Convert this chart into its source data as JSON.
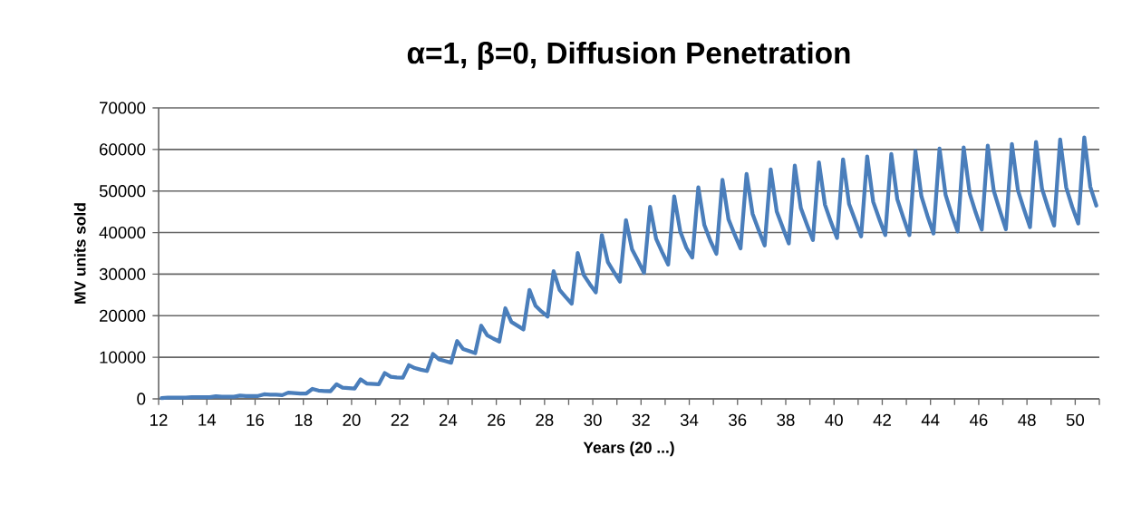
{
  "chart_data": {
    "type": "line",
    "title": "α=1, β=0, Diffusion Penetration",
    "xlabel": "Years (20 ...)",
    "ylabel": "MV units sold",
    "xlim": [
      12,
      51
    ],
    "ylim": [
      0,
      70000
    ],
    "xticks": [
      {
        "value": 12,
        "label": "12"
      },
      {
        "value": 13,
        "label": null
      },
      {
        "value": 14,
        "label": "14"
      },
      {
        "value": 15,
        "label": null
      },
      {
        "value": 16,
        "label": "16"
      },
      {
        "value": 17,
        "label": null
      },
      {
        "value": 18,
        "label": "18"
      },
      {
        "value": 19,
        "label": null
      },
      {
        "value": 20,
        "label": "20"
      },
      {
        "value": 21,
        "label": null
      },
      {
        "value": 22,
        "label": "22"
      },
      {
        "value": 23,
        "label": null
      },
      {
        "value": 24,
        "label": "24"
      },
      {
        "value": 25,
        "label": null
      },
      {
        "value": 26,
        "label": "26"
      },
      {
        "value": 27,
        "label": null
      },
      {
        "value": 28,
        "label": "28"
      },
      {
        "value": 29,
        "label": null
      },
      {
        "value": 30,
        "label": "30"
      },
      {
        "value": 31,
        "label": null
      },
      {
        "value": 32,
        "label": "32"
      },
      {
        "value": 33,
        "label": null
      },
      {
        "value": 34,
        "label": "34"
      },
      {
        "value": 35,
        "label": null
      },
      {
        "value": 36,
        "label": "36"
      },
      {
        "value": 37,
        "label": null
      },
      {
        "value": 38,
        "label": "38"
      },
      {
        "value": 39,
        "label": null
      },
      {
        "value": 40,
        "label": "40"
      },
      {
        "value": 41,
        "label": null
      },
      {
        "value": 42,
        "label": "42"
      },
      {
        "value": 43,
        "label": null
      },
      {
        "value": 44,
        "label": "44"
      },
      {
        "value": 45,
        "label": null
      },
      {
        "value": 46,
        "label": "46"
      },
      {
        "value": 47,
        "label": null
      },
      {
        "value": 48,
        "label": "48"
      },
      {
        "value": 49,
        "label": null
      },
      {
        "value": 50,
        "label": "50"
      },
      {
        "value": 51,
        "label": null
      }
    ],
    "yticks": [
      0,
      10000,
      20000,
      30000,
      40000,
      50000,
      60000,
      70000
    ],
    "grid": "y",
    "marker": "none",
    "line_style": "solid",
    "x": [
      12.125,
      12.375,
      12.625,
      12.875,
      13.125,
      13.375,
      13.625,
      13.875,
      14.125,
      14.375,
      14.625,
      14.875,
      15.125,
      15.375,
      15.625,
      15.875,
      16.125,
      16.375,
      16.625,
      16.875,
      17.125,
      17.375,
      17.625,
      17.875,
      18.125,
      18.375,
      18.625,
      18.875,
      19.125,
      19.375,
      19.625,
      19.875,
      20.125,
      20.375,
      20.625,
      20.875,
      21.125,
      21.375,
      21.625,
      21.875,
      22.125,
      22.375,
      22.625,
      22.875,
      23.125,
      23.375,
      23.625,
      23.875,
      24.125,
      24.375,
      24.625,
      24.875,
      25.125,
      25.375,
      25.625,
      25.875,
      26.125,
      26.375,
      26.625,
      26.875,
      27.125,
      27.375,
      27.625,
      27.875,
      28.125,
      28.375,
      28.625,
      28.875,
      29.125,
      29.375,
      29.625,
      29.875,
      30.125,
      30.375,
      30.625,
      30.875,
      31.125,
      31.375,
      31.625,
      31.875,
      32.125,
      32.375,
      32.625,
      32.875,
      33.125,
      33.375,
      33.625,
      33.875,
      34.125,
      34.375,
      34.625,
      34.875,
      35.125,
      35.375,
      35.625,
      35.875,
      36.125,
      36.375,
      36.625,
      36.875,
      37.125,
      37.375,
      37.625,
      37.875,
      38.125,
      38.375,
      38.625,
      38.875,
      39.125,
      39.375,
      39.625,
      39.875,
      40.125,
      40.375,
      40.625,
      40.875,
      41.125,
      41.375,
      41.625,
      41.875,
      42.125,
      42.375,
      42.625,
      42.875,
      43.125,
      43.375,
      43.625,
      43.875,
      44.125,
      44.375,
      44.625,
      44.875,
      45.125,
      45.375,
      45.625,
      45.875,
      46.125,
      46.375,
      46.625,
      46.875,
      47.125,
      47.375,
      47.625,
      47.875,
      48.125,
      48.375,
      48.625,
      48.875,
      49.125,
      49.375,
      49.625,
      49.875,
      50.125,
      50.375,
      50.625,
      50.875
    ],
    "series": [
      {
        "color": "#4a7ebb",
        "values": [
          200,
          300,
          300,
          300,
          300,
          400,
          400,
          400,
          400,
          600,
          500,
          500,
          500,
          800,
          700,
          700,
          700,
          1100,
          1000,
          1000,
          900,
          1500,
          1400,
          1300,
          1300,
          2400,
          2000,
          1900,
          1850,
          3500,
          2700,
          2600,
          2500,
          4700,
          3700,
          3600,
          3500,
          6200,
          5300,
          5150,
          5100,
          8100,
          7400,
          7000,
          6700,
          10800,
          9500,
          9100,
          8700,
          13900,
          12000,
          11500,
          11000,
          17600,
          15300,
          14500,
          13800,
          21800,
          18500,
          17600,
          16700,
          26200,
          22400,
          21000,
          19800,
          30700,
          26200,
          24500,
          22900,
          35100,
          29800,
          27600,
          25600,
          39400,
          32900,
          30500,
          28200,
          43000,
          36000,
          33200,
          30300,
          46200,
          38500,
          35300,
          32300,
          48700,
          40300,
          36400,
          34000,
          50900,
          41800,
          38000,
          34900,
          52700,
          43200,
          39600,
          36200,
          54100,
          44500,
          40600,
          36900,
          55200,
          45100,
          41200,
          37400,
          56100,
          45900,
          42000,
          38200,
          56900,
          46700,
          42500,
          38700,
          57600,
          46900,
          43000,
          39100,
          58300,
          47400,
          43300,
          39400,
          58900,
          48000,
          43600,
          39400,
          59600,
          48700,
          44000,
          39800,
          60200,
          49100,
          44400,
          40300,
          60500,
          49400,
          44800,
          40700,
          60900,
          50000,
          45300,
          40800,
          61300,
          50200,
          45600,
          41300,
          61800,
          50500,
          45900,
          41700,
          62400,
          50900,
          46200,
          42200,
          62900,
          51000,
          46500
        ]
      }
    ]
  }
}
